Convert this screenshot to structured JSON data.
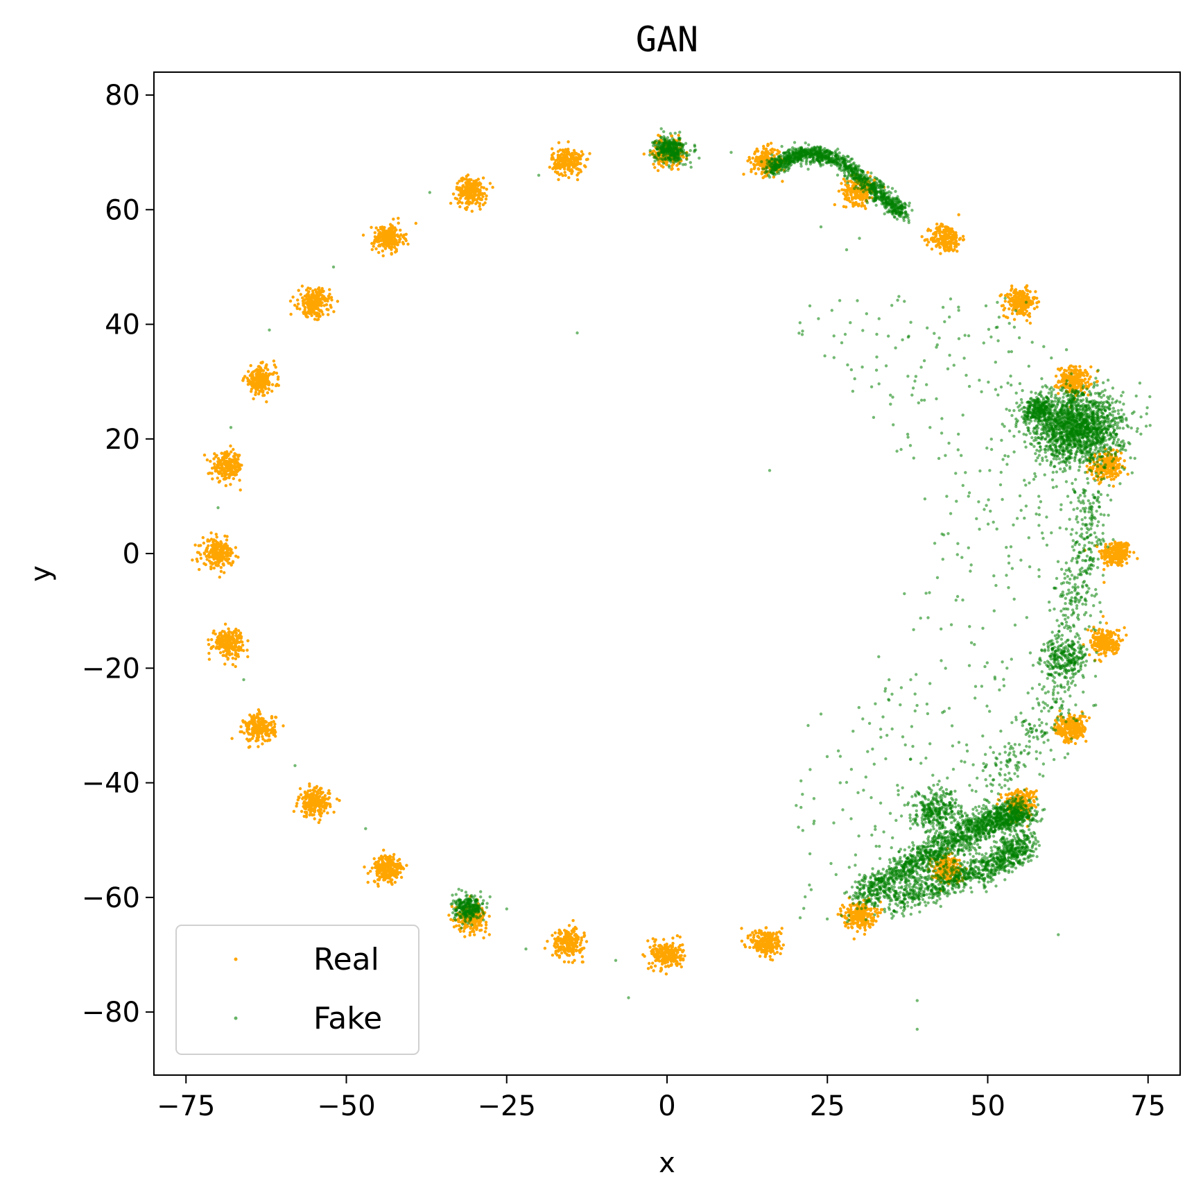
{
  "chart_data": {
    "type": "scatter",
    "title": "GAN",
    "xlabel": "x",
    "ylabel": "y",
    "xlim": [
      -80,
      80
    ],
    "ylim": [
      -91,
      84
    ],
    "xticks": [
      -75,
      -50,
      -25,
      0,
      25,
      50,
      75
    ],
    "xtick_labels": [
      "−75",
      "−50",
      "−25",
      "0",
      "25",
      "50",
      "75"
    ],
    "yticks": [
      -80,
      -60,
      -40,
      -20,
      0,
      20,
      40,
      60,
      80
    ],
    "ytick_labels": [
      "−80",
      "−60",
      "−40",
      "−20",
      "0",
      "20",
      "40",
      "60",
      "80"
    ],
    "grid": false,
    "legend": {
      "placement": "lower-left",
      "entries": [
        "Real",
        "Fake"
      ]
    },
    "series": [
      {
        "name": "Real",
        "color": "#ffa500",
        "mode_spread": 1.2,
        "points_per_mode": 220,
        "modes": [
          [
            70,
            0
          ],
          [
            68.5,
            15.2
          ],
          [
            63.5,
            30.2
          ],
          [
            55,
            43.8
          ],
          [
            43.5,
            55
          ],
          [
            30,
            63.4
          ],
          [
            15.5,
            68.4
          ],
          [
            0,
            70
          ],
          [
            -15.5,
            68.4
          ],
          [
            -30.5,
            63.2
          ],
          [
            -43.5,
            55
          ],
          [
            -55,
            43.8
          ],
          [
            -63.5,
            30.2
          ],
          [
            -68.5,
            15.2
          ],
          [
            -70,
            0
          ],
          [
            -68.5,
            -15.5
          ],
          [
            -63.5,
            -30.5
          ],
          [
            -55,
            -43.5
          ],
          [
            -43.5,
            -55
          ],
          [
            -30.5,
            -63.5
          ],
          [
            -15.5,
            -68
          ],
          [
            0,
            -70
          ],
          [
            15.5,
            -68
          ],
          [
            30,
            -63
          ],
          [
            43.5,
            -55
          ],
          [
            55,
            -43.5
          ],
          [
            63,
            -30.5
          ],
          [
            68.5,
            -15.5
          ]
        ]
      },
      {
        "name": "Fake",
        "color": "#008000",
        "clusters": [
          {
            "center": [
              0.5,
              70.5
            ],
            "spread": 1.2,
            "count": 350
          },
          {
            "center": [
              -31,
              -62
            ],
            "spread": 1.2,
            "count": 260
          },
          {
            "center": [
              64,
              22
            ],
            "spread": 3.5,
            "count": 1600
          },
          {
            "center": [
              58,
              25
            ],
            "spread": 1.2,
            "count": 250
          },
          {
            "center": [
              62,
              -18
            ],
            "spread": 1.8,
            "count": 220
          },
          {
            "center": [
              42,
              -45
            ],
            "spread": 2,
            "count": 300
          }
        ],
        "paths": [
          {
            "points": [
              [
                16,
                67
              ],
              [
                21,
                70
              ],
              [
                26,
                69
              ],
              [
                32,
                64
              ],
              [
                37,
                59
              ]
            ],
            "spread": 0.7,
            "count": 1200
          },
          {
            "points": [
              [
                30,
                -60
              ],
              [
                40,
                -53
              ],
              [
                50,
                -47
              ],
              [
                56,
                -45
              ]
            ],
            "spread": 1.3,
            "count": 1600
          },
          {
            "points": [
              [
                35,
                -61
              ],
              [
                44,
                -57
              ],
              [
                52,
                -54
              ],
              [
                56,
                -50
              ]
            ],
            "spread": 1.3,
            "count": 900
          },
          {
            "points": [
              [
                66,
                12
              ],
              [
                65,
                0
              ],
              [
                63,
                -10
              ],
              [
                60,
                -28
              ],
              [
                50,
                -40
              ]
            ],
            "spread": 1.6,
            "count": 500
          }
        ],
        "scatter": [
          [
            16,
            14.5
          ],
          [
            -14,
            38.5
          ],
          [
            -6,
            -77.5
          ],
          [
            39,
            -83
          ],
          [
            39,
            -78
          ],
          [
            42,
            27
          ],
          [
            45,
            14
          ],
          [
            47,
            1
          ],
          [
            43,
            -1
          ],
          [
            37,
            -7
          ],
          [
            31,
            -39
          ],
          [
            34,
            -24
          ],
          [
            42,
            36
          ],
          [
            37,
            44
          ],
          [
            30,
            55
          ],
          [
            26,
            -47
          ],
          [
            27,
            -40
          ],
          [
            22,
            -30
          ],
          [
            33,
            -18
          ],
          [
            38,
            -22
          ],
          [
            61,
            -66.5
          ],
          [
            -62,
            39
          ],
          [
            -68,
            22
          ],
          [
            -70,
            8
          ],
          [
            -66,
            -22
          ],
          [
            -58,
            -37
          ],
          [
            -37,
            63
          ],
          [
            -20,
            66
          ],
          [
            -52,
            50
          ],
          [
            -47,
            -48
          ],
          [
            -25,
            -62
          ],
          [
            -22,
            -69
          ],
          [
            -8,
            -71
          ],
          [
            5,
            69
          ],
          [
            10,
            70
          ],
          [
            47,
            10
          ],
          [
            41,
            22
          ],
          [
            24,
            -28
          ],
          [
            29,
            -31
          ],
          [
            44,
            -27
          ],
          [
            53,
            -20
          ],
          [
            51,
            -10
          ],
          [
            54,
            5
          ],
          [
            58,
            8
          ],
          [
            52,
            12
          ],
          [
            24,
            57
          ],
          [
            28,
            53
          ]
        ],
        "background_noise": {
          "count": 700,
          "x_range": [
            20,
            68
          ],
          "y_range": [
            -65,
            45
          ]
        }
      }
    ]
  }
}
